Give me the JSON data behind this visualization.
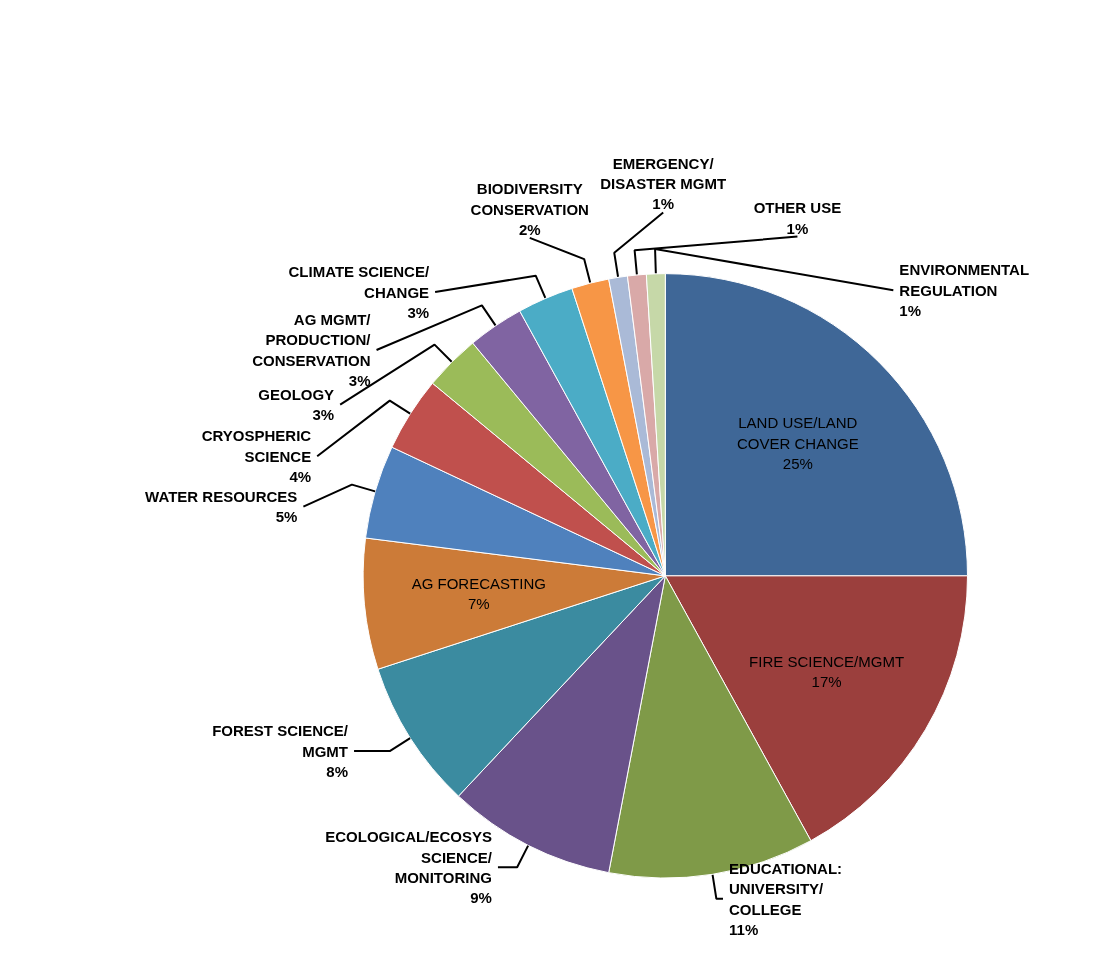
{
  "chart_data": {
    "type": "pie",
    "categories": [
      "LAND USE/LAND COVER CHANGE",
      "FIRE SCIENCE/MGMT",
      "EDUCATIONAL: UNIVERSITY/ COLLEGE",
      "ECOLOGICAL/ECOSYS SCIENCE/ MONITORING",
      "FOREST SCIENCE/MGMT",
      "AG FORECASTING",
      "WATER RESOURCES",
      "CRYOSPHERIC SCIENCE",
      "GEOLOGY",
      "AG MGMT/ PRODUCTION/ CONSERVATION",
      "CLIMATE SCIENCE/CHANGE",
      "BIODIVERSITY CONSERVATION",
      "EMERGENCY/ DISASTER MGMT",
      "OTHER USE",
      "ENVIRONMENTAL REGULATION"
    ],
    "values": [
      25,
      17,
      11,
      9,
      8,
      7,
      5,
      4,
      3,
      3,
      3,
      2,
      1,
      1,
      1
    ],
    "value_labels": [
      "25%",
      "17%",
      "11%",
      "9%",
      "8%",
      "7%",
      "5%",
      "4%",
      "3%",
      "3%",
      "3%",
      "2%",
      "1%",
      "1%",
      "1%"
    ],
    "colors": [
      "#3f6797",
      "#9b3f3d",
      "#7f9a48",
      "#69528a",
      "#3b8ba0",
      "#cc7b38",
      "#4f81bd",
      "#c0504d",
      "#9bbb59",
      "#8064a2",
      "#4bacc6",
      "#f79646",
      "#aabad7",
      "#d9a9a8",
      "#c6d8a8"
    ]
  }
}
